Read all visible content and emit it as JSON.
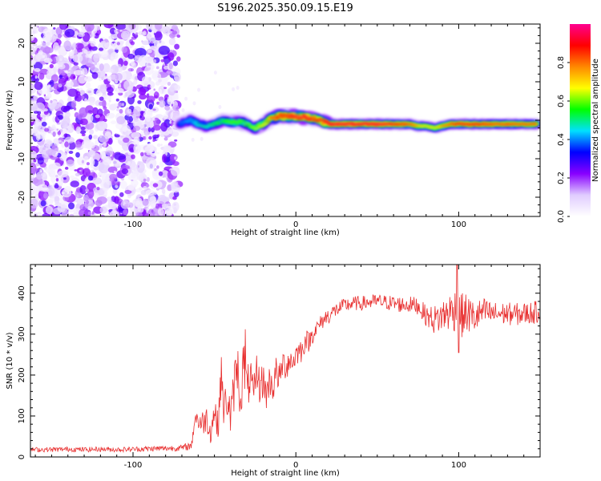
{
  "title": "S196.2025.350.09.15.E19",
  "chart_data": [
    {
      "type": "heatmap",
      "title": "S196.2025.350.09.15.E19",
      "xlabel": "Height of straight line (km)",
      "ylabel": "Frequency (Hz)",
      "xlim": [
        -163,
        150
      ],
      "ylim": [
        -25,
        25
      ],
      "xticks": [
        -100,
        0,
        100
      ],
      "xtick_labels": [
        "-100",
        "0",
        "100"
      ],
      "yticks": [
        -20,
        -10,
        0,
        10,
        20
      ],
      "ytick_labels": [
        "-20",
        "-10",
        "0",
        "10",
        "20"
      ],
      "noise_region_x": [
        -163,
        -72
      ],
      "signal_start_x": -72,
      "ridge": {
        "x": [
          -72,
          -65,
          -60,
          -55,
          -50,
          -45,
          -40,
          -35,
          -30,
          -25,
          -20,
          -15,
          -10,
          -5,
          0,
          5,
          10,
          15,
          20,
          30,
          40,
          50,
          60,
          70,
          75,
          80,
          85,
          90,
          95,
          100,
          110,
          120,
          130,
          140,
          148
        ],
        "freq": [
          -1,
          0,
          -1,
          -1.5,
          -1,
          0,
          -0.5,
          -0.3,
          -1,
          -2,
          -1,
          0.5,
          1,
          1,
          1,
          0.8,
          0.5,
          0,
          -1,
          -1,
          -1,
          -1,
          -1,
          -1,
          -1.5,
          -1.5,
          -2,
          -1.5,
          -1,
          -1,
          -1,
          -1,
          -1,
          -1,
          -1
        ],
        "amplitude": [
          0.4,
          0.45,
          0.5,
          0.5,
          0.55,
          0.55,
          0.6,
          0.6,
          0.6,
          0.65,
          0.7,
          0.85,
          0.9,
          0.9,
          0.95,
          0.95,
          0.9,
          0.9,
          0.95,
          0.95,
          0.95,
          0.95,
          0.9,
          0.85,
          0.75,
          0.7,
          0.7,
          0.8,
          0.85,
          0.9,
          0.9,
          0.85,
          0.85,
          0.85,
          0.85
        ]
      },
      "colorbar": {
        "label": "Normalized spectral amplitude",
        "range": [
          0,
          1
        ],
        "ticks": [
          0.0,
          0.2,
          0.4,
          0.6,
          0.8
        ],
        "tick_labels": [
          "0.0",
          "0.2",
          "0.4",
          "0.6",
          "0.8"
        ],
        "colors": [
          "#ffffff",
          "#e0ccff",
          "#8800ff",
          "#0000ff",
          "#00e0ff",
          "#00ff00",
          "#ffff00",
          "#ff8800",
          "#ff0000",
          "#ff0090"
        ]
      }
    },
    {
      "type": "line",
      "xlabel": "Height of straight line (km)",
      "ylabel": "SNR (10 * v/v)",
      "xlim": [
        -163,
        150
      ],
      "ylim": [
        0,
        470
      ],
      "xticks": [
        -100,
        0,
        100
      ],
      "xtick_labels": [
        "-100",
        "0",
        "100"
      ],
      "yticks": [
        0,
        100,
        200,
        300,
        400
      ],
      "ytick_labels": [
        "0",
        "100",
        "200",
        "300",
        "400"
      ],
      "series": [
        {
          "name": "SNR",
          "color": "#e83030",
          "x": [
            -163,
            -150,
            -140,
            -130,
            -120,
            -110,
            -100,
            -90,
            -80,
            -70,
            -64,
            -62,
            -58,
            -55,
            -52,
            -50,
            -48,
            -46,
            -44,
            -42,
            -40,
            -38,
            -36,
            -34,
            -32,
            -30,
            -28,
            -26,
            -24,
            -22,
            -20,
            -18,
            -16,
            -14,
            -12,
            -10,
            -8,
            -6,
            -4,
            -2,
            0,
            2,
            4,
            6,
            8,
            10,
            12,
            14,
            16,
            18,
            20,
            25,
            30,
            35,
            40,
            45,
            50,
            55,
            60,
            65,
            70,
            75,
            80,
            85,
            88,
            90,
            92,
            95,
            98,
            100,
            102,
            105,
            110,
            115,
            120,
            125,
            130,
            135,
            140,
            145,
            150
          ],
          "y": [
            18,
            18,
            19,
            18,
            19,
            18,
            19,
            20,
            21,
            22,
            28,
            100,
            80,
            95,
            60,
            120,
            70,
            200,
            110,
            150,
            90,
            170,
            230,
            130,
            240,
            160,
            200,
            140,
            210,
            170,
            190,
            150,
            190,
            170,
            210,
            190,
            230,
            220,
            240,
            230,
            250,
            260,
            260,
            290,
            280,
            300,
            310,
            320,
            330,
            340,
            345,
            360,
            370,
            375,
            375,
            378,
            380,
            378,
            375,
            372,
            372,
            370,
            345,
            335,
            340,
            345,
            350,
            355,
            360,
            350,
            345,
            350,
            340,
            355,
            350,
            350,
            350,
            348,
            350,
            352,
            355
          ],
          "noise": [
            6,
            6,
            6,
            6,
            6,
            6,
            6,
            7,
            7,
            8,
            10,
            25,
            30,
            35,
            30,
            40,
            40,
            60,
            50,
            60,
            45,
            60,
            70,
            50,
            70,
            55,
            55,
            45,
            50,
            45,
            45,
            40,
            40,
            40,
            40,
            35,
            35,
            35,
            35,
            30,
            30,
            30,
            30,
            25,
            25,
            25,
            20,
            20,
            20,
            20,
            20,
            18,
            18,
            18,
            18,
            18,
            18,
            18,
            20,
            20,
            20,
            22,
            25,
            35,
            40,
            40,
            45,
            50,
            55,
            60,
            55,
            50,
            40,
            35,
            30,
            28,
            28,
            28,
            28,
            28,
            28
          ],
          "peaks": [
            {
              "x": -31,
              "y": 312
            },
            {
              "x": 99,
              "y": 470
            },
            {
              "x": 100,
              "y": 255
            }
          ]
        }
      ]
    }
  ]
}
